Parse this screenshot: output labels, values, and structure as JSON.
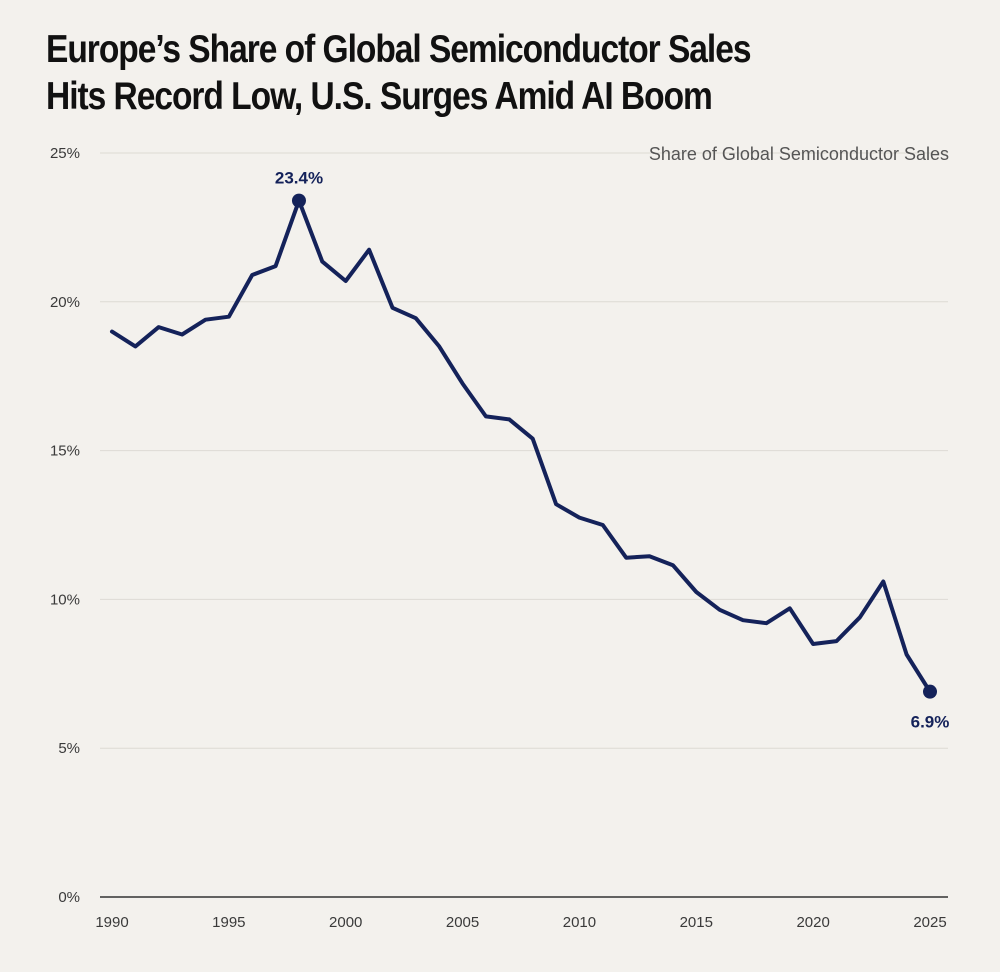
{
  "title_line1": "Europe’s Share of Global Semiconductor Sales",
  "title_line2": "Hits Record Low, U.S. Surges Amid AI Boom",
  "colors": {
    "background": "#f3f1ed",
    "line": "#14225a",
    "grid": "#dddad4",
    "axis": "#333333"
  },
  "chart_data": {
    "type": "line",
    "title": "Europe’s Share of Global Semiconductor Sales Hits Record Low, U.S. Surges Amid AI Boom",
    "subtitle": "Share of Global Semiconductor Sales",
    "xlabel": "",
    "ylabel": "",
    "xlim": [
      1990,
      2025
    ],
    "ylim": [
      0,
      25
    ],
    "x_ticks": [
      1990,
      1995,
      2000,
      2005,
      2010,
      2015,
      2020,
      2025
    ],
    "x_tick_labels": [
      "1990",
      "1995",
      "2000",
      "2005",
      "2010",
      "2015",
      "2020",
      "2025"
    ],
    "y_ticks": [
      0,
      5,
      10,
      15,
      20,
      25
    ],
    "y_tick_labels": [
      "0%",
      "5%",
      "10%",
      "15%",
      "20%",
      "25%"
    ],
    "grid": true,
    "series": [
      {
        "name": "Europe",
        "x": [
          1990,
          1991,
          1992,
          1993,
          1994,
          1995,
          1996,
          1997,
          1998,
          1999,
          2000,
          2001,
          2002,
          2003,
          2004,
          2005,
          2006,
          2007,
          2008,
          2009,
          2010,
          2011,
          2012,
          2013,
          2014,
          2015,
          2016,
          2017,
          2018,
          2019,
          2020,
          2021,
          2022,
          2023,
          2024,
          2025
        ],
        "values": [
          19.0,
          18.5,
          19.15,
          18.9,
          19.4,
          19.5,
          20.9,
          21.2,
          23.4,
          21.35,
          20.7,
          21.75,
          19.8,
          19.45,
          18.5,
          17.25,
          16.15,
          16.05,
          15.4,
          13.2,
          12.75,
          12.5,
          11.4,
          11.45,
          11.15,
          10.25,
          9.65,
          9.3,
          9.2,
          9.7,
          8.5,
          8.6,
          9.4,
          10.6,
          8.15,
          6.9
        ]
      }
    ],
    "annotations": [
      {
        "x": 1998,
        "y": 23.4,
        "text": "23.4%"
      },
      {
        "x": 2025,
        "y": 6.9,
        "text": "6.9%"
      }
    ]
  }
}
